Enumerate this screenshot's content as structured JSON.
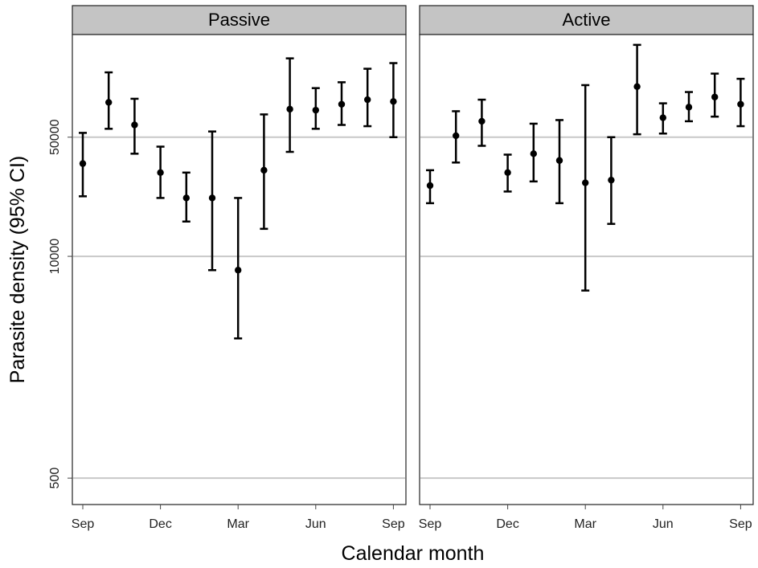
{
  "chart_data": {
    "type": "scatter",
    "xlabel": "Calendar month",
    "ylabel": "Parasite density (95% CI)",
    "y_scale": "log",
    "ylim": [
      350,
      200000
    ],
    "y_ticks": [
      {
        "value": 500,
        "label": "500"
      },
      {
        "value": 10000,
        "label": "10000"
      },
      {
        "value": 50000,
        "label": "50000"
      }
    ],
    "x_ticks": [
      {
        "index": 0,
        "label": "Sep"
      },
      {
        "index": 3,
        "label": "Dec"
      },
      {
        "index": 6,
        "label": "Mar"
      },
      {
        "index": 9,
        "label": "Jun"
      },
      {
        "index": 12,
        "label": "Sep"
      }
    ],
    "grid": "horizontal",
    "panels": [
      {
        "label": "Passive",
        "points": [
          {
            "x": 0,
            "y": 35000,
            "lower": 22500,
            "upper": 53000
          },
          {
            "x": 1,
            "y": 80000,
            "lower": 56000,
            "upper": 120000
          },
          {
            "x": 2,
            "y": 59000,
            "lower": 40000,
            "upper": 84000
          },
          {
            "x": 3,
            "y": 31000,
            "lower": 22000,
            "upper": 44000
          },
          {
            "x": 4,
            "y": 22000,
            "lower": 16000,
            "upper": 31000
          },
          {
            "x": 5,
            "y": 22000,
            "lower": 8300,
            "upper": 54000
          },
          {
            "x": 6,
            "y": 8300,
            "lower": 3300,
            "upper": 22000
          },
          {
            "x": 7,
            "y": 32000,
            "lower": 14500,
            "upper": 68000
          },
          {
            "x": 8,
            "y": 73000,
            "lower": 41000,
            "upper": 145000
          },
          {
            "x": 9,
            "y": 72000,
            "lower": 56000,
            "upper": 97000
          },
          {
            "x": 10,
            "y": 78000,
            "lower": 59000,
            "upper": 105000
          },
          {
            "x": 11,
            "y": 83000,
            "lower": 58000,
            "upper": 126000
          },
          {
            "x": 12,
            "y": 81000,
            "lower": 50000,
            "upper": 136000
          }
        ]
      },
      {
        "label": "Active",
        "points": [
          {
            "x": 0,
            "y": 26000,
            "lower": 20500,
            "upper": 32000
          },
          {
            "x": 1,
            "y": 51000,
            "lower": 35500,
            "upper": 71000
          },
          {
            "x": 2,
            "y": 62000,
            "lower": 44500,
            "upper": 83000
          },
          {
            "x": 3,
            "y": 31000,
            "lower": 24000,
            "upper": 39500
          },
          {
            "x": 4,
            "y": 40000,
            "lower": 27500,
            "upper": 60000
          },
          {
            "x": 5,
            "y": 36500,
            "lower": 20500,
            "upper": 63000
          },
          {
            "x": 6,
            "y": 27000,
            "lower": 6300,
            "upper": 101000
          },
          {
            "x": 7,
            "y": 28000,
            "lower": 15500,
            "upper": 50000
          },
          {
            "x": 8,
            "y": 99000,
            "lower": 52000,
            "upper": 174000
          },
          {
            "x": 9,
            "y": 65000,
            "lower": 52500,
            "upper": 79000
          },
          {
            "x": 10,
            "y": 75000,
            "lower": 62000,
            "upper": 92000
          },
          {
            "x": 11,
            "y": 86000,
            "lower": 66000,
            "upper": 118000
          },
          {
            "x": 12,
            "y": 78000,
            "lower": 58000,
            "upper": 110000
          }
        ]
      }
    ]
  }
}
